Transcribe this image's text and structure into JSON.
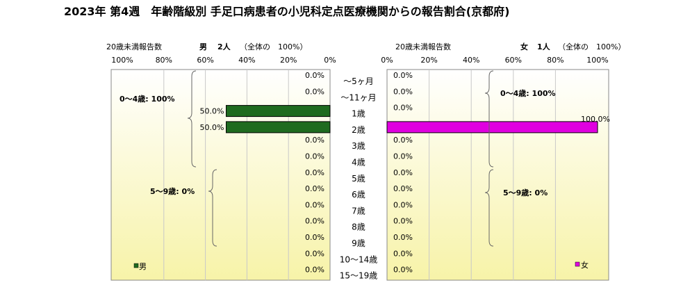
{
  "title": "2023年 第4週　年齢階級別 手足口病患者の小児科定点医療機関からの報告割合(京都府)",
  "left_panel": {
    "header_prefix": "20歳未満報告数",
    "header_sex": "男",
    "header_count": "2人",
    "header_total": "（全体の　100%）",
    "axis_ticks": [
      "100%",
      "80%",
      "60%",
      "40%",
      "20%",
      "0%"
    ],
    "legend": "男",
    "bracket_labels": [
      "0～4歳: 100%",
      "5～9歳: 0%"
    ]
  },
  "right_panel": {
    "header_prefix": "20歳未満報告数",
    "header_sex": "女",
    "header_count": "1人",
    "header_total": "（全体の　100%）",
    "axis_ticks": [
      "0%",
      "20%",
      "40%",
      "60%",
      "80%",
      "100%"
    ],
    "legend": "女",
    "bracket_labels": [
      "0～4歳: 100%",
      "5～9歳: 0%"
    ]
  },
  "colors": {
    "male": "#1f6b1f",
    "female": "#e000e0",
    "panel_top": "#ffffff",
    "panel_bottom": "#f7f3a8"
  },
  "chart_data": {
    "type": "bar",
    "orientation": "horizontal",
    "categories": [
      "～5ヶ月",
      "～11ヶ月",
      "1歳",
      "2歳",
      "3歳",
      "4歳",
      "5歳",
      "6歳",
      "7歳",
      "8歳",
      "9歳",
      "10～14歳",
      "15～19歳"
    ],
    "xlim": [
      0,
      100
    ],
    "series": [
      {
        "name": "男",
        "values": [
          0.0,
          0.0,
          50.0,
          50.0,
          0.0,
          0.0,
          0.0,
          0.0,
          0.0,
          0.0,
          0.0,
          0.0,
          0.0
        ],
        "labels": [
          "0.0%",
          "0.0%",
          "50.0%",
          "50.0%",
          "0.0%",
          "0.0%",
          "0.0%",
          "0.0%",
          "0.0%",
          "0.0%",
          "0.0%",
          "0.0%",
          "0.0%"
        ]
      },
      {
        "name": "女",
        "values": [
          0.0,
          0.0,
          0.0,
          100.0,
          0.0,
          0.0,
          0.0,
          0.0,
          0.0,
          0.0,
          0.0,
          0.0,
          0.0
        ],
        "labels": [
          "0.0%",
          "0.0%",
          "0.0%",
          "100.0%",
          "0.0%",
          "0.0%",
          "0.0%",
          "0.0%",
          "0.0%",
          "0.0%",
          "0.0%",
          "0.0%",
          "0.0%"
        ]
      }
    ]
  }
}
